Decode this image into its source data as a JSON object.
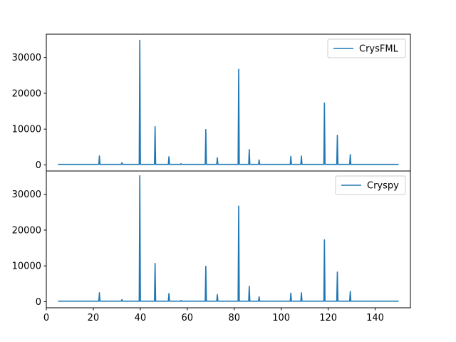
{
  "chart_data": [
    {
      "type": "line",
      "panel": "top",
      "legend_position": "upper-right",
      "series": [
        {
          "name": "CrysFML",
          "color": "#1f77b4"
        }
      ],
      "xlim": [
        0,
        155
      ],
      "ylim": [
        -1700,
        36500
      ],
      "yticks": [
        0,
        10000,
        20000,
        30000
      ],
      "x_range": [
        5,
        150
      ],
      "baseline": 150,
      "peaks": [
        {
          "x": 22.6,
          "y": 2500
        },
        {
          "x": 32.2,
          "y": 600
        },
        {
          "x": 39.8,
          "y": 34800
        },
        {
          "x": 46.3,
          "y": 10700
        },
        {
          "x": 52.2,
          "y": 2300
        },
        {
          "x": 57.4,
          "y": 350
        },
        {
          "x": 67.9,
          "y": 9900
        },
        {
          "x": 72.8,
          "y": 2000
        },
        {
          "x": 81.9,
          "y": 26700
        },
        {
          "x": 86.4,
          "y": 4300
        },
        {
          "x": 90.6,
          "y": 1400
        },
        {
          "x": 104.1,
          "y": 2400
        },
        {
          "x": 108.6,
          "y": 2500
        },
        {
          "x": 118.4,
          "y": 17300
        },
        {
          "x": 123.9,
          "y": 8300
        },
        {
          "x": 129.4,
          "y": 2900
        }
      ]
    },
    {
      "type": "line",
      "panel": "bottom",
      "legend_position": "upper-right",
      "series": [
        {
          "name": "Cryspy",
          "color": "#1f77b4"
        }
      ],
      "xlim": [
        0,
        155
      ],
      "ylim": [
        -1700,
        36500
      ],
      "yticks": [
        0,
        10000,
        20000,
        30000
      ],
      "xticks": [
        0,
        20,
        40,
        60,
        80,
        100,
        120,
        140
      ],
      "x_range": [
        5,
        150
      ],
      "baseline": 150,
      "peaks": [
        {
          "x": 22.6,
          "y": 2500
        },
        {
          "x": 32.2,
          "y": 600
        },
        {
          "x": 39.8,
          "y": 35200
        },
        {
          "x": 46.3,
          "y": 10700
        },
        {
          "x": 52.2,
          "y": 2300
        },
        {
          "x": 57.4,
          "y": 350
        },
        {
          "x": 67.9,
          "y": 9900
        },
        {
          "x": 72.8,
          "y": 2000
        },
        {
          "x": 81.9,
          "y": 26700
        },
        {
          "x": 86.4,
          "y": 4300
        },
        {
          "x": 90.6,
          "y": 1400
        },
        {
          "x": 104.1,
          "y": 2400
        },
        {
          "x": 108.6,
          "y": 2500
        },
        {
          "x": 118.4,
          "y": 17300
        },
        {
          "x": 123.9,
          "y": 8300
        },
        {
          "x": 129.4,
          "y": 2900
        }
      ]
    }
  ]
}
